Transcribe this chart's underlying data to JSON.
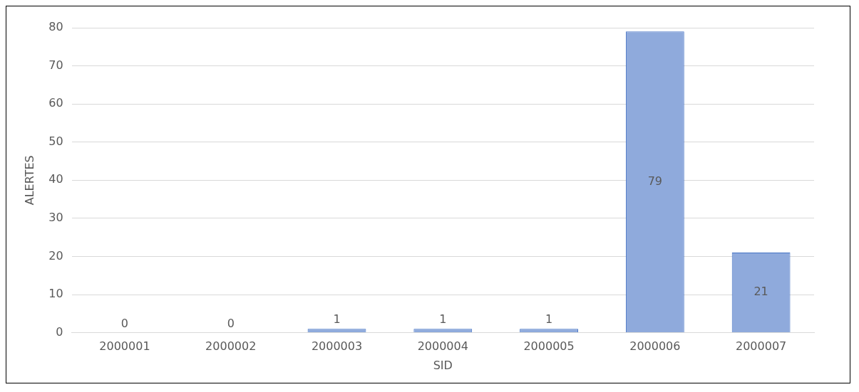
{
  "chart_data": {
    "type": "bar",
    "xlabel": "SID",
    "ylabel": "ALERTES",
    "categories": [
      "2000001",
      "2000002",
      "2000003",
      "2000004",
      "2000005",
      "2000006",
      "2000007"
    ],
    "values": [
      0,
      0,
      1,
      1,
      1,
      79,
      21
    ],
    "color": "#8faadc",
    "ylim": [
      0,
      80
    ],
    "yticks": [
      0,
      10,
      20,
      30,
      40,
      50,
      60,
      70,
      80
    ],
    "grid": "y",
    "data_labels": true
  }
}
